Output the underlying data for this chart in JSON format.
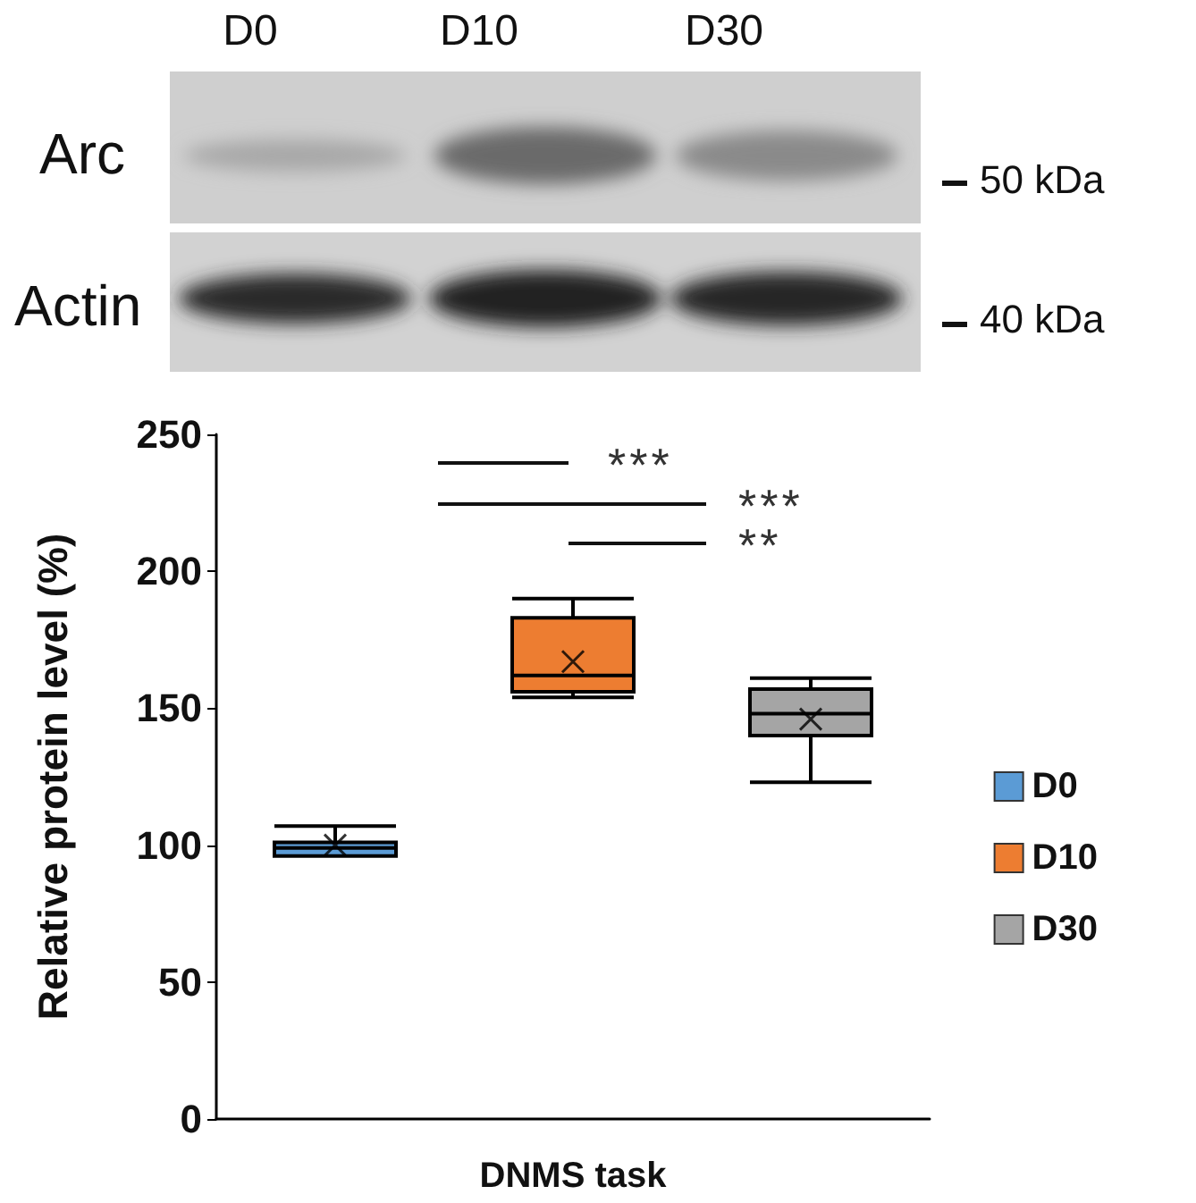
{
  "chart_data": {
    "type": "box",
    "xlabel": "DNMS task",
    "ylabel": "Relative protein level (%)",
    "categories": [
      null,
      null,
      null
    ],
    "series": [
      {
        "name": "D0",
        "color": "#5b9bd5",
        "boxes": [
          {
            "low": 96,
            "q1": 96,
            "median": 99,
            "q3": 101,
            "high": 107,
            "mean": 100
          },
          null,
          null
        ]
      },
      {
        "name": "D10",
        "color": "#ed7d31",
        "boxes": [
          null,
          {
            "low": 154,
            "q1": 156,
            "median": 162,
            "q3": 183,
            "high": 190,
            "mean": 167
          },
          null
        ]
      },
      {
        "name": "D30",
        "color": "#a5a5a5",
        "boxes": [
          null,
          null,
          {
            "low": 123,
            "q1": 140,
            "median": 148,
            "q3": 157,
            "high": 161,
            "mean": 146
          }
        ]
      }
    ],
    "ylim": [
      0,
      250
    ],
    "yticks": [
      0,
      50,
      100,
      150,
      200,
      250
    ],
    "grid": false,
    "legend": "right",
    "annotations": [
      "***",
      "***",
      "**",
      "D0",
      "D10",
      "D30",
      "Arc",
      "Actin",
      "50 kDa",
      "40 kDa"
    ]
  }
}
